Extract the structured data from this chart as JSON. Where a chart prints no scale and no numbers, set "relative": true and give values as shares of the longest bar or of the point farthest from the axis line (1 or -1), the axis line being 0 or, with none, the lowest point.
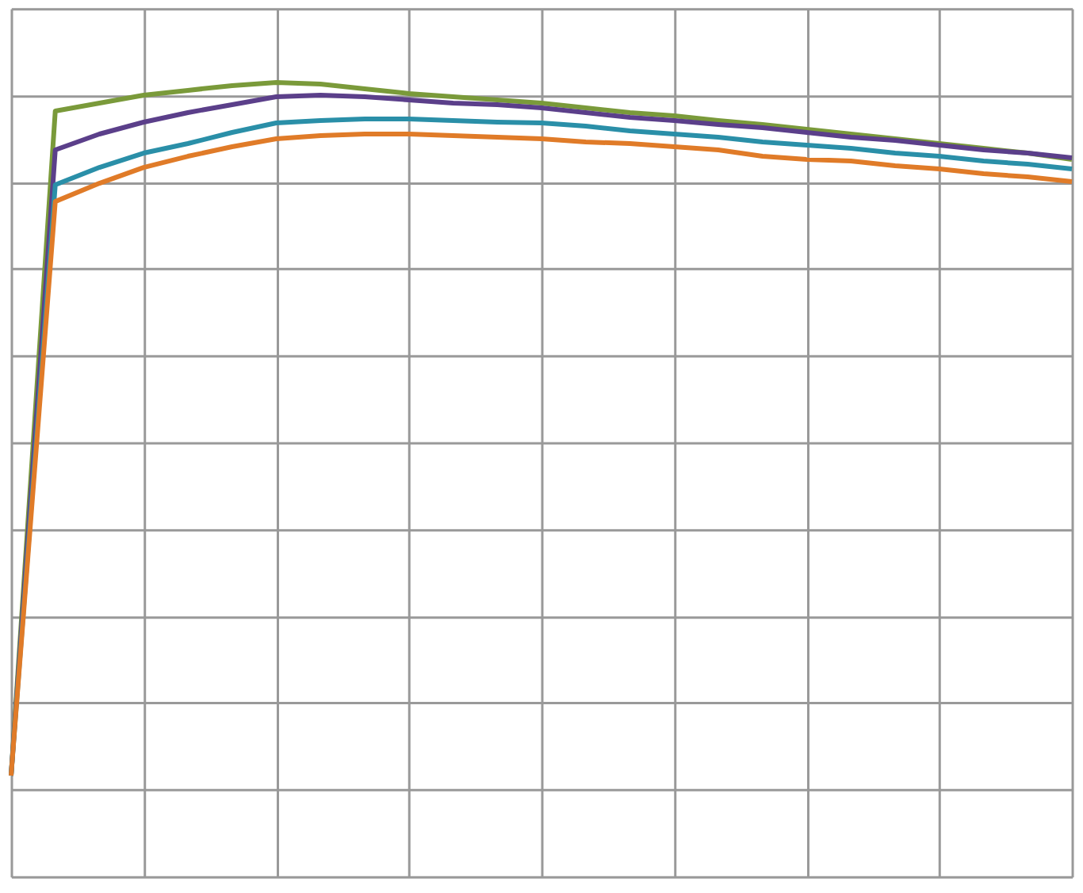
{
  "chart_data": {
    "type": "line",
    "relative": true,
    "grid": true,
    "line_style": "solid",
    "marker": "none",
    "categories": [
      null,
      null,
      null,
      null,
      null,
      null,
      null,
      null,
      null,
      null,
      null,
      null,
      null,
      null,
      null,
      null,
      null,
      null,
      null,
      null,
      null,
      null,
      null,
      null,
      null
    ],
    "series": [
      {
        "color": "#7a9a3a",
        "values": [
          0.127,
          0.964,
          0.974,
          0.984,
          0.99,
          0.996,
          1.0,
          0.998,
          0.992,
          0.986,
          0.982,
          0.978,
          0.974,
          0.968,
          0.962,
          0.958,
          0.952,
          0.947,
          0.941,
          0.935,
          0.929,
          0.923,
          0.917,
          0.911,
          0.903
        ]
      },
      {
        "color": "#5b3f8a",
        "values": [
          0.127,
          0.915,
          0.935,
          0.95,
          0.962,
          0.972,
          0.982,
          0.984,
          0.982,
          0.978,
          0.974,
          0.972,
          0.968,
          0.962,
          0.956,
          0.952,
          0.947,
          0.943,
          0.937,
          0.931,
          0.927,
          0.921,
          0.915,
          0.911,
          0.905
        ]
      },
      {
        "color": "#2a8fa8",
        "values": [
          0.127,
          0.871,
          0.893,
          0.911,
          0.923,
          0.937,
          0.949,
          0.952,
          0.954,
          0.954,
          0.952,
          0.95,
          0.949,
          0.945,
          0.939,
          0.935,
          0.931,
          0.925,
          0.921,
          0.917,
          0.911,
          0.907,
          0.901,
          0.897,
          0.891
        ]
      },
      {
        "color": "#e07b28",
        "values": [
          0.127,
          0.85,
          0.873,
          0.893,
          0.907,
          0.919,
          0.929,
          0.933,
          0.935,
          0.935,
          0.933,
          0.931,
          0.929,
          0.925,
          0.923,
          0.919,
          0.915,
          0.907,
          0.903,
          0.901,
          0.895,
          0.891,
          0.885,
          0.881,
          0.875
        ]
      }
    ]
  }
}
